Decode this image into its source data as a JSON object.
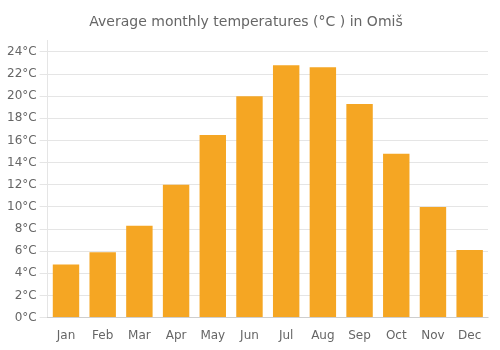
{
  "chart_data": {
    "type": "bar",
    "title": "Average monthly temperatures (°C ) in Omiš",
    "categories": [
      "Jan",
      "Feb",
      "Mar",
      "Apr",
      "May",
      "Jun",
      "Jul",
      "Aug",
      "Sep",
      "Oct",
      "Nov",
      "Dec"
    ],
    "values": [
      4.8,
      5.9,
      8.3,
      12.0,
      16.5,
      20.0,
      22.8,
      22.6,
      19.3,
      14.8,
      10.0,
      6.1
    ],
    "color": "#F5A623",
    "ylim": [
      0,
      25
    ],
    "yticks": [
      {
        "value": 0,
        "label": "0°C"
      },
      {
        "value": 2,
        "label": "2°C"
      },
      {
        "value": 4,
        "label": "4°C"
      },
      {
        "value": 6,
        "label": "6°C"
      },
      {
        "value": 8,
        "label": "8°C"
      },
      {
        "value": 10,
        "label": "10°C"
      },
      {
        "value": 12,
        "label": "12°C"
      },
      {
        "value": 14,
        "label": "14°C"
      },
      {
        "value": 16,
        "label": "16°C"
      },
      {
        "value": 18,
        "label": "18°C"
      },
      {
        "value": 20,
        "label": "20°C"
      },
      {
        "value": 22,
        "label": "22°C"
      },
      {
        "value": 24,
        "label": "24°C"
      }
    ],
    "grid": true
  }
}
